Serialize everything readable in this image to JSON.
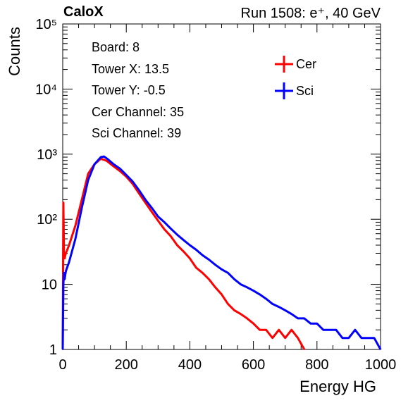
{
  "header": {
    "left": "CaloX",
    "right": "Run 1508: e⁺, 40 GeV"
  },
  "info_lines": [
    "Board: 8",
    "Tower X: 13.5",
    "Tower Y: -0.5",
    "Cer Channel: 35",
    "Sci Channel: 39"
  ],
  "chart_data": {
    "type": "line",
    "xlabel": "Energy HG",
    "ylabel": "Counts",
    "xlim": [
      0,
      1000
    ],
    "ylim": [
      1,
      100000
    ],
    "yscale": "log",
    "grid": false,
    "legend_position": "top-right",
    "x_ticks": [
      "0",
      "200",
      "400",
      "600",
      "800",
      "1000"
    ],
    "y_ticks": [
      "1",
      "10",
      "10²",
      "10³",
      "10⁴",
      "10⁵"
    ],
    "series": [
      {
        "name": "Cer",
        "color": "#ff0000",
        "x": [
          0,
          2,
          4,
          6,
          8,
          10,
          20,
          40,
          60,
          80,
          100,
          120,
          130,
          140,
          160,
          180,
          200,
          220,
          240,
          260,
          280,
          300,
          320,
          340,
          360,
          380,
          400,
          420,
          440,
          460,
          480,
          500,
          520,
          540,
          560,
          580,
          600,
          620,
          640,
          660,
          680,
          700,
          720,
          740,
          760
        ],
        "y": [
          1,
          180,
          30,
          25,
          28,
          30,
          40,
          80,
          200,
          500,
          700,
          850,
          820,
          780,
          650,
          550,
          450,
          350,
          250,
          180,
          130,
          95,
          70,
          55,
          40,
          32,
          25,
          18,
          15,
          12,
          9,
          7,
          5,
          4,
          3.5,
          3,
          2.5,
          2,
          2,
          1.5,
          2,
          1.5,
          2,
          1.5,
          1
        ]
      },
      {
        "name": "Sci",
        "color": "#0000ff",
        "x": [
          0,
          2,
          4,
          6,
          8,
          10,
          20,
          40,
          60,
          80,
          100,
          120,
          130,
          140,
          160,
          180,
          200,
          220,
          240,
          260,
          280,
          300,
          320,
          340,
          360,
          380,
          400,
          420,
          440,
          460,
          480,
          500,
          520,
          540,
          560,
          580,
          600,
          620,
          640,
          660,
          680,
          700,
          720,
          740,
          760,
          780,
          800,
          820,
          840,
          860,
          880,
          900,
          920,
          940,
          960,
          980,
          1000
        ],
        "y": [
          1,
          10,
          15,
          12,
          14,
          16,
          22,
          50,
          150,
          400,
          700,
          900,
          920,
          850,
          700,
          600,
          480,
          380,
          280,
          200,
          150,
          110,
          90,
          72,
          58,
          48,
          40,
          34,
          28,
          24,
          20,
          17,
          15,
          12,
          10,
          9,
          8,
          7,
          6,
          5,
          4.5,
          4,
          3.5,
          3,
          3,
          2.5,
          2.5,
          2,
          2,
          2,
          1.5,
          1.5,
          2,
          1.5,
          1.5,
          1.5,
          1
        ]
      }
    ]
  }
}
